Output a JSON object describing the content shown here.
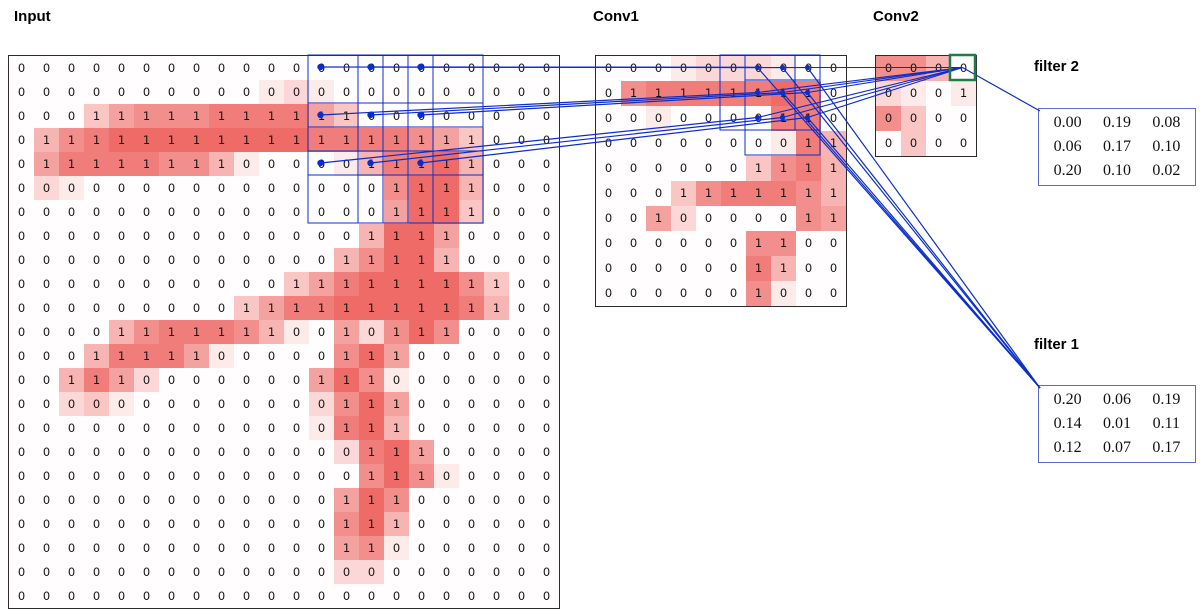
{
  "labels": {
    "input": "Input",
    "conv1": "Conv1",
    "conv2": "Conv2"
  },
  "colors": {
    "cell_red_rgb": "234,74,69",
    "line_blue": "#0a2ecc",
    "highlight_green": "#1e7d46",
    "grid_border": "#2b2b2b",
    "filter_border": "#5a6acf"
  },
  "grids": {
    "input": {
      "values": [
        "0000000000000000000000",
        "0000000000000000000000",
        "0001111111111100000000",
        "0111111111111111111000",
        "0111111110000011111000",
        "0000000000000001111000",
        "0000000000000001111000",
        "0000000000000011110000",
        "0000000000000111110000",
        "0000000000011111111100",
        "0000000001111111111100",
        "0000111111100101110000",
        "0001111100000111000000",
        "0011100000001110000000",
        "0000000000000111000000",
        "0000000000000111000000",
        "0000000000000011100000",
        "0000000000000011100000",
        "0000000000000111000000",
        "0000000000000111000000",
        "0000000000000110000000",
        "0000000000000000000000",
        "0000000000000000000000"
      ],
      "intensity": [
        "0000000000000000000000",
        "0000000000121000000000",
        "0003566677775300000000",
        "0467888888887777653000",
        "0577776641000147784000",
        "0210000000000006884000",
        "0000000000000005883000",
        "0000000000000048850000",
        "0000000000000468840000",
        "0000000000035788886300",
        "0000000003577888887400",
        "0000467776410526860000",
        "0004777510000685000000",
        "0047520000005861000000",
        "0023100000002685000000",
        "0000000000001784000000",
        "0000000000000278500000",
        "0000000000000068610000",
        "0000000000000586000000",
        "0000000000000684000000",
        "0000000000000561000000",
        "0000000000000220000000",
        "0000000000000000000000"
      ]
    },
    "conv1": {
      "values": [
        "0000000000",
        "0111111110",
        "0000000110",
        "0000000011",
        "0000001111",
        "0001111111",
        "0010000011",
        "0000001100",
        "0000001100",
        "0000001000"
      ],
      "intensity": [
        "0001222100",
        "0677777870",
        "0010000770",
        "0000000174",
        "0000003674",
        "0003677764",
        "0052000065",
        "0000006600",
        "0000007400",
        "0000006100"
      ]
    },
    "conv2": {
      "values": [
        "0000",
        "0001",
        "0000",
        "0000"
      ],
      "intensity": [
        "6640",
        "2101",
        "6300",
        "0300"
      ]
    }
  },
  "filters": {
    "filter2": {
      "label": "filter 2",
      "rows": [
        [
          "0.00",
          "0.19",
          "0.08"
        ],
        [
          "0.06",
          "0.17",
          "0.10"
        ],
        [
          "0.20",
          "0.10",
          "0.02"
        ]
      ]
    },
    "filter1": {
      "label": "filter 1",
      "rows": [
        [
          "0.20",
          "0.06",
          "0.19"
        ],
        [
          "0.14",
          "0.01",
          "0.11"
        ],
        [
          "0.12",
          "0.07",
          "0.17"
        ]
      ]
    }
  },
  "overlay": {
    "kernel_size": 3,
    "input_receptive_cells": [
      [
        0,
        12
      ],
      [
        0,
        14
      ],
      [
        0,
        16
      ],
      [
        2,
        12
      ],
      [
        2,
        14
      ],
      [
        2,
        16
      ],
      [
        4,
        12
      ],
      [
        4,
        14
      ],
      [
        4,
        16
      ]
    ],
    "conv1_target_cells": [
      [
        0,
        6
      ],
      [
        0,
        7
      ],
      [
        0,
        8
      ],
      [
        1,
        6
      ],
      [
        1,
        7
      ],
      [
        1,
        8
      ],
      [
        2,
        6
      ],
      [
        2,
        7
      ],
      [
        2,
        8
      ]
    ],
    "conv1_boxes": [
      [
        0,
        5
      ],
      [
        0,
        6
      ],
      [
        1,
        6
      ]
    ],
    "conv2_highlight_cell": [
      0,
      3
    ],
    "filter1_source_cells": [
      [
        0,
        6
      ],
      [
        0,
        7
      ],
      [
        0,
        8
      ],
      [
        1,
        7
      ],
      [
        1,
        8
      ],
      [
        2,
        8
      ]
    ]
  }
}
